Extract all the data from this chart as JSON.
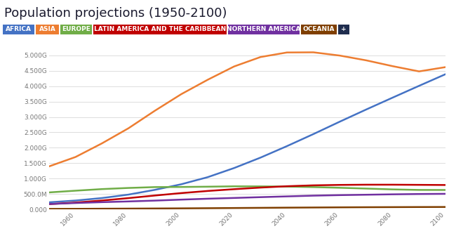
{
  "title": "Population projections (1950-2100)",
  "title_fontsize": 13,
  "legend_labels": [
    "AFRICA",
    "ASIA",
    "EUROPE",
    "LATIN AMERICA AND THE CARIBBEAN",
    "NORTHERN AMERICA",
    "OCEANIA",
    "+"
  ],
  "legend_colors": [
    "#4472c4",
    "#ed7d31",
    "#70ad47",
    "#c00000",
    "#7030a0",
    "#7f3f00",
    "#1f2d4e"
  ],
  "years": [
    1950,
    1960,
    1970,
    1980,
    1990,
    2000,
    2010,
    2020,
    2030,
    2040,
    2050,
    2060,
    2070,
    2080,
    2090,
    2100
  ],
  "africa": [
    0.228,
    0.285,
    0.366,
    0.478,
    0.632,
    0.814,
    1.044,
    1.341,
    1.68,
    2.053,
    2.444,
    2.848,
    3.243,
    3.629,
    4.012,
    4.39
  ],
  "asia": [
    1.395,
    1.7,
    2.143,
    2.632,
    3.202,
    3.741,
    4.209,
    4.641,
    4.948,
    5.096,
    5.101,
    4.995,
    4.84,
    4.651,
    4.481,
    4.62
  ],
  "europe": [
    0.549,
    0.605,
    0.657,
    0.694,
    0.722,
    0.726,
    0.735,
    0.747,
    0.745,
    0.738,
    0.722,
    0.7,
    0.674,
    0.647,
    0.63,
    0.628
  ],
  "latam": [
    0.168,
    0.22,
    0.285,
    0.364,
    0.448,
    0.527,
    0.596,
    0.654,
    0.706,
    0.75,
    0.779,
    0.793,
    0.8,
    0.8,
    0.795,
    0.79
  ],
  "northam": [
    0.172,
    0.204,
    0.232,
    0.256,
    0.283,
    0.315,
    0.344,
    0.369,
    0.395,
    0.42,
    0.444,
    0.461,
    0.474,
    0.487,
    0.497,
    0.503
  ],
  "oceania": [
    0.013,
    0.016,
    0.02,
    0.023,
    0.027,
    0.031,
    0.036,
    0.042,
    0.048,
    0.054,
    0.059,
    0.064,
    0.068,
    0.071,
    0.074,
    0.076
  ],
  "ylim": [
    0,
    5.5
  ],
  "yticks": [
    0.0,
    0.5,
    1.0,
    1.5,
    2.0,
    2.5,
    3.0,
    3.5,
    4.0,
    4.5,
    5.0
  ],
  "ytick_labels": [
    "0.000",
    "500.0M",
    "1.000G",
    "1.500G",
    "2.000G",
    "2.500G",
    "3.000G",
    "3.500G",
    "4.000G",
    "4.500G",
    "5.000G"
  ],
  "xticks": [
    1960,
    1980,
    2000,
    2020,
    2040,
    2060,
    2080,
    2100
  ],
  "background_color": "#ffffff",
  "grid_color": "#dddddd",
  "line_width": 1.8
}
